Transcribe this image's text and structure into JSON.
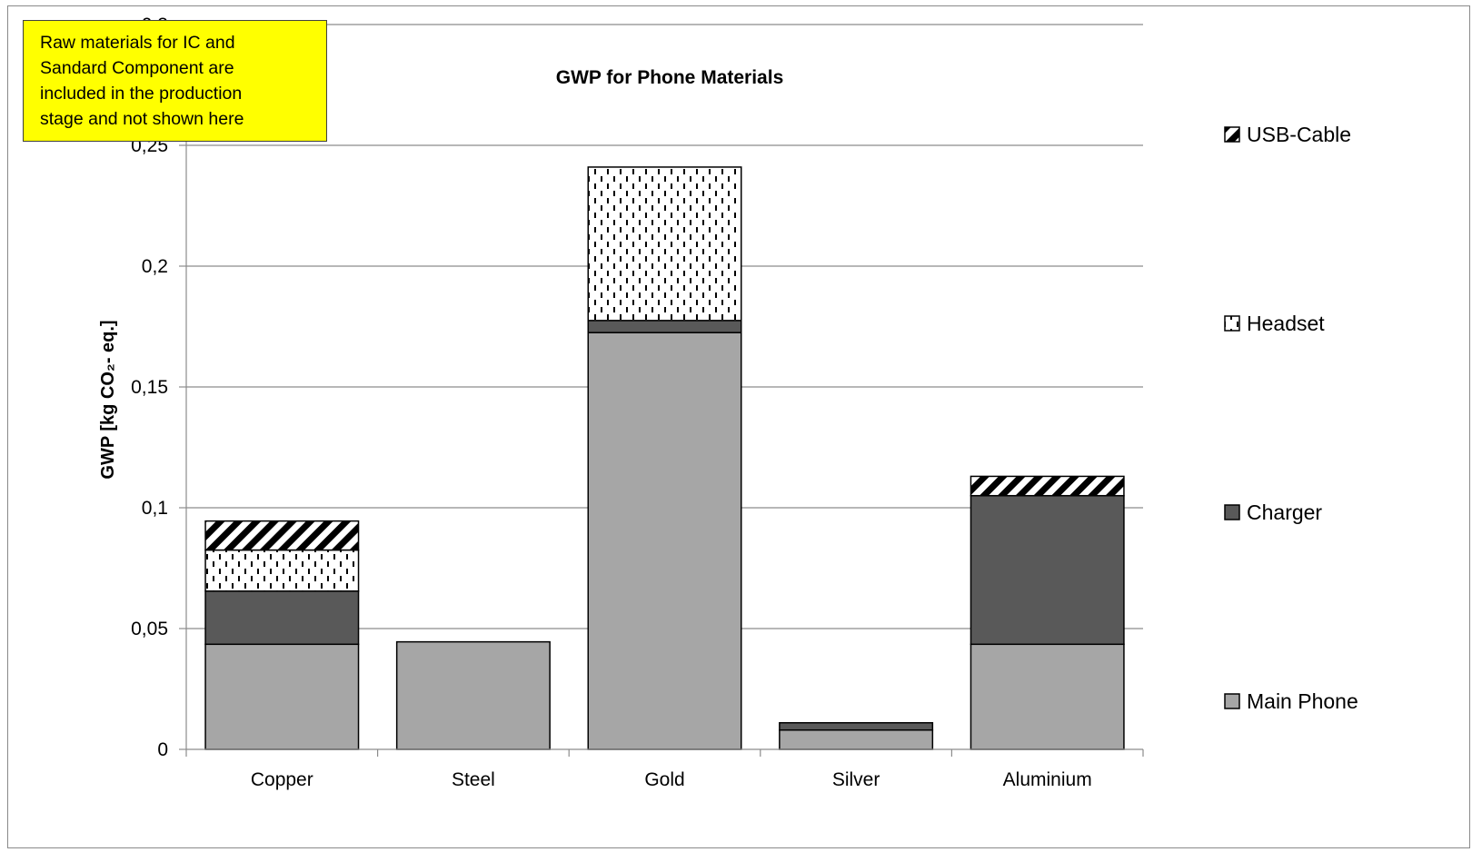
{
  "chart_data": {
    "type": "bar",
    "stacked": true,
    "title": "GWP for Phone Materials",
    "ylabel": "GWP [kg CO₂- eq.]",
    "xlabel": "",
    "categories": [
      "Copper",
      "Steel",
      "Gold",
      "Silver",
      "Aluminium"
    ],
    "ylim": [
      0,
      0.3
    ],
    "yticks": [
      "0",
      "0,05",
      "0,1",
      "0,15",
      "0,2",
      "0,25",
      "0,3"
    ],
    "ytick_values": [
      0,
      0.05,
      0.1,
      0.15,
      0.2,
      0.25,
      0.3
    ],
    "grid": true,
    "legend_position": "right",
    "series": [
      {
        "name": "Main Phone",
        "values": [
          0.0435,
          0.0445,
          0.1725,
          0.008,
          0.0435
        ],
        "color": "#a6a6a6",
        "pattern": "solid"
      },
      {
        "name": "Charger",
        "values": [
          0.022,
          0,
          0.005,
          0.003,
          0.0615
        ],
        "color": "#595959",
        "pattern": "solid"
      },
      {
        "name": "Headset",
        "values": [
          0.017,
          0,
          0.0635,
          0,
          0
        ],
        "color": "#ffffff",
        "pattern": "dashes"
      },
      {
        "name": "USB-Cable",
        "values": [
          0.012,
          0,
          0,
          0,
          0.008
        ],
        "color": "#000000",
        "pattern": "diagonal"
      }
    ],
    "annotation": [
      "Raw materials for IC and",
      "Sandard Component  are",
      "included in the production",
      "stage and not shown here"
    ]
  }
}
